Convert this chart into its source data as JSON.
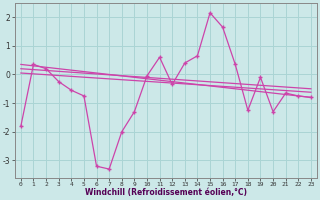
{
  "xlabel": "Windchill (Refroidissement éolien,°C)",
  "background_color": "#cce8e8",
  "grid_color": "#aad4d4",
  "line_color": "#cc44aa",
  "xlim": [
    -0.5,
    23.5
  ],
  "ylim": [
    -3.6,
    2.5
  ],
  "xticks": [
    0,
    1,
    2,
    3,
    4,
    5,
    6,
    7,
    8,
    9,
    10,
    11,
    12,
    13,
    14,
    15,
    16,
    17,
    18,
    19,
    20,
    21,
    22,
    23
  ],
  "yticks": [
    -3,
    -2,
    -1,
    0,
    1,
    2
  ],
  "hours": [
    0,
    1,
    2,
    3,
    4,
    5,
    6,
    7,
    8,
    9,
    10,
    11,
    12,
    13,
    14,
    15,
    16,
    17,
    18,
    19,
    20,
    21,
    22,
    23
  ],
  "series1": [
    -1.8,
    0.35,
    0.2,
    -0.25,
    -0.55,
    -0.75,
    -3.2,
    -3.3,
    -2.0,
    -1.3,
    -0.05,
    0.6,
    -0.35,
    0.4,
    0.65,
    2.15,
    1.65,
    0.35,
    -1.25,
    -0.1,
    -1.3,
    -0.65,
    -0.75,
    -0.8
  ],
  "series2_x": [
    0,
    23
  ],
  "series2_y": [
    0.35,
    -0.8
  ],
  "series3_x": [
    0,
    23
  ],
  "series3_y": [
    0.2,
    -0.5
  ],
  "series4_x": [
    0,
    23
  ],
  "series4_y": [
    0.05,
    -0.62
  ]
}
